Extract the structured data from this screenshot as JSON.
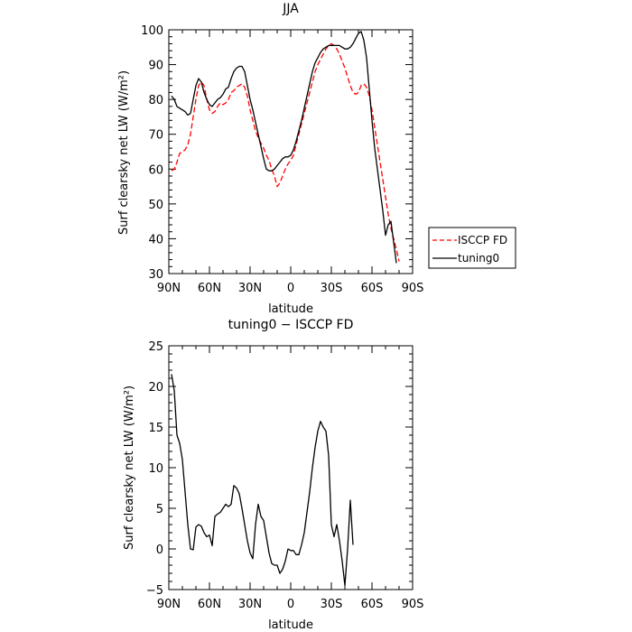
{
  "chart_data": [
    {
      "type": "line",
      "title": "JJA",
      "xlabel": "latitude",
      "ylabel": "Surf clearsky net LW (W/m²)",
      "xlim": [
        90,
        -90
      ],
      "ylim": [
        30,
        100
      ],
      "x_ticks": [
        90,
        60,
        30,
        0,
        -30,
        -60,
        -90
      ],
      "x_tick_labels": [
        "90N",
        "60N",
        "30N",
        "0",
        "30S",
        "60S",
        "90S"
      ],
      "y_ticks": [
        30,
        40,
        50,
        60,
        70,
        80,
        90,
        100
      ],
      "y_tick_labels": [
        "30",
        "40",
        "50",
        "60",
        "70",
        "80",
        "90",
        "100"
      ],
      "legend": {
        "position": "outside-right",
        "entries": [
          "ISCCP FD",
          "tuning0"
        ]
      },
      "series": [
        {
          "name": "ISCCP FD",
          "color": "#ff0000",
          "dash": "dashed",
          "points": [
            [
              88,
              59.5
            ],
            [
              86,
              60
            ],
            [
              84,
              62
            ],
            [
              82,
              64.5
            ],
            [
              80,
              65
            ],
            [
              78,
              65.5
            ],
            [
              76,
              67
            ],
            [
              74,
              70
            ],
            [
              72,
              75
            ],
            [
              70,
              80
            ],
            [
              68,
              84
            ],
            [
              66,
              85
            ],
            [
              64,
              84
            ],
            [
              62,
              80
            ],
            [
              60,
              77
            ],
            [
              58,
              76
            ],
            [
              56,
              76.5
            ],
            [
              54,
              78
            ],
            [
              52,
              79
            ],
            [
              50,
              78.5
            ],
            [
              48,
              79
            ],
            [
              46,
              80
            ],
            [
              44,
              82
            ],
            [
              42,
              82.5
            ],
            [
              40,
              83.5
            ],
            [
              38,
              84
            ],
            [
              36,
              84.5
            ],
            [
              34,
              83.5
            ],
            [
              32,
              81
            ],
            [
              30,
              77
            ],
            [
              28,
              74
            ],
            [
              26,
              71
            ],
            [
              24,
              69
            ],
            [
              22,
              67.5
            ],
            [
              20,
              66
            ],
            [
              18,
              64
            ],
            [
              16,
              62.5
            ],
            [
              14,
              60
            ],
            [
              12,
              58
            ],
            [
              10,
              55
            ],
            [
              8,
              56
            ],
            [
              6,
              58
            ],
            [
              4,
              60
            ],
            [
              2,
              61.5
            ],
            [
              0,
              62.5
            ],
            [
              -2,
              64
            ],
            [
              -4,
              67
            ],
            [
              -6,
              70
            ],
            [
              -8,
              73
            ],
            [
              -10,
              76
            ],
            [
              -12,
              79
            ],
            [
              -14,
              82
            ],
            [
              -16,
              85
            ],
            [
              -18,
              88
            ],
            [
              -20,
              90
            ],
            [
              -22,
              91.5
            ],
            [
              -24,
              93
            ],
            [
              -26,
              94.5
            ],
            [
              -28,
              95.5
            ],
            [
              -30,
              96
            ],
            [
              -32,
              95.5
            ],
            [
              -34,
              94.5
            ],
            [
              -36,
              93
            ],
            [
              -38,
              91
            ],
            [
              -40,
              89
            ],
            [
              -42,
              86.5
            ],
            [
              -44,
              84
            ],
            [
              -46,
              82
            ],
            [
              -48,
              81.5
            ],
            [
              -50,
              82
            ],
            [
              -52,
              84
            ],
            [
              -54,
              84.5
            ],
            [
              -56,
              83.5
            ],
            [
              -58,
              81
            ],
            [
              -60,
              77
            ],
            [
              -62,
              72
            ],
            [
              -64,
              67
            ],
            [
              -66,
              62
            ],
            [
              -68,
              57
            ],
            [
              -70,
              52
            ],
            [
              -72,
              47
            ],
            [
              -74,
              43
            ],
            [
              -76,
              40
            ],
            [
              -78,
              37
            ],
            [
              -80,
              33.5
            ]
          ]
        },
        {
          "name": "tuning0",
          "color": "#000000",
          "dash": "solid",
          "points": [
            [
              88,
              81
            ],
            [
              86,
              80
            ],
            [
              84,
              78
            ],
            [
              82,
              77.5
            ],
            [
              80,
              77
            ],
            [
              78,
              76.5
            ],
            [
              76,
              75.5
            ],
            [
              74,
              76
            ],
            [
              72,
              80
            ],
            [
              70,
              84
            ],
            [
              68,
              86
            ],
            [
              66,
              85
            ],
            [
              64,
              82
            ],
            [
              62,
              80
            ],
            [
              60,
              78.5
            ],
            [
              58,
              78
            ],
            [
              56,
              79
            ],
            [
              54,
              80
            ],
            [
              52,
              80.5
            ],
            [
              50,
              81.5
            ],
            [
              48,
              83
            ],
            [
              46,
              83.5
            ],
            [
              44,
              86
            ],
            [
              42,
              88
            ],
            [
              40,
              89
            ],
            [
              38,
              89.5
            ],
            [
              36,
              89.5
            ],
            [
              34,
              88
            ],
            [
              32,
              84
            ],
            [
              30,
              80
            ],
            [
              28,
              77
            ],
            [
              26,
              73.5
            ],
            [
              24,
              70
            ],
            [
              22,
              66.5
            ],
            [
              20,
              63
            ],
            [
              18,
              60
            ],
            [
              16,
              59.5
            ],
            [
              14,
              59.5
            ],
            [
              12,
              60
            ],
            [
              10,
              61
            ],
            [
              8,
              62
            ],
            [
              6,
              63
            ],
            [
              4,
              63.5
            ],
            [
              2,
              63.5
            ],
            [
              0,
              64
            ],
            [
              -2,
              65.5
            ],
            [
              -4,
              68
            ],
            [
              -6,
              71
            ],
            [
              -8,
              74
            ],
            [
              -10,
              77.5
            ],
            [
              -12,
              81
            ],
            [
              -14,
              84.5
            ],
            [
              -16,
              88
            ],
            [
              -18,
              90.5
            ],
            [
              -20,
              92
            ],
            [
              -22,
              93.5
            ],
            [
              -24,
              94.5
            ],
            [
              -26,
              95
            ],
            [
              -28,
              95.5
            ],
            [
              -30,
              95.5
            ],
            [
              -32,
              95.5
            ],
            [
              -34,
              95.5
            ],
            [
              -36,
              95.5
            ],
            [
              -38,
              95
            ],
            [
              -40,
              94.5
            ],
            [
              -42,
              94.5
            ],
            [
              -44,
              95
            ],
            [
              -46,
              96
            ],
            [
              -48,
              97.5
            ],
            [
              -50,
              99
            ],
            [
              -52,
              99.5
            ],
            [
              -54,
              97
            ],
            [
              -56,
              92
            ],
            [
              -58,
              83
            ],
            [
              -60,
              74
            ],
            [
              -62,
              66
            ],
            [
              -64,
              60
            ],
            [
              -66,
              54
            ],
            [
              -68,
              48
            ],
            [
              -70,
              41
            ],
            [
              -72,
              44
            ],
            [
              -74,
              45
            ],
            [
              -76,
              39
            ],
            [
              -78,
              33
            ]
          ]
        }
      ]
    },
    {
      "type": "line",
      "title": "tuning0 − ISCCP FD",
      "xlabel": "latitude",
      "ylabel": "Surf clearsky net LW (W/m²)",
      "xlim": [
        90,
        -90
      ],
      "ylim": [
        -5,
        25
      ],
      "x_ticks": [
        90,
        60,
        30,
        0,
        -30,
        -60,
        -90
      ],
      "x_tick_labels": [
        "90N",
        "60N",
        "30N",
        "0",
        "30S",
        "60S",
        "90S"
      ],
      "y_ticks": [
        -5,
        0,
        5,
        10,
        15,
        20,
        25
      ],
      "y_tick_labels": [
        "−5",
        "0",
        "5",
        "10",
        "15",
        "20",
        "25"
      ],
      "series": [
        {
          "color": "#000000",
          "dash": "solid",
          "points": [
            [
              88,
              21.5
            ],
            [
              86,
              19.5
            ],
            [
              84,
              14
            ],
            [
              82,
              13
            ],
            [
              80,
              11
            ],
            [
              78,
              7
            ],
            [
              76,
              3
            ],
            [
              74,
              0
            ],
            [
              72,
              -0.1
            ],
            [
              70,
              2.7
            ],
            [
              68,
              3
            ],
            [
              66,
              2.8
            ],
            [
              64,
              2
            ],
            [
              62,
              1.5
            ],
            [
              60,
              1.7
            ],
            [
              58,
              0.4
            ],
            [
              56,
              4
            ],
            [
              54,
              4.3
            ],
            [
              52,
              4.5
            ],
            [
              50,
              5
            ],
            [
              48,
              5.5
            ],
            [
              46,
              5.2
            ],
            [
              44,
              5.5
            ],
            [
              42,
              7.8
            ],
            [
              40,
              7.5
            ],
            [
              38,
              6.8
            ],
            [
              36,
              5
            ],
            [
              34,
              3
            ],
            [
              32,
              1
            ],
            [
              30,
              -0.5
            ],
            [
              28,
              -1.2
            ],
            [
              26,
              3
            ],
            [
              24,
              5.5
            ],
            [
              22,
              4
            ],
            [
              20,
              3.5
            ],
            [
              18,
              1.5
            ],
            [
              16,
              -0.5
            ],
            [
              14,
              -1.8
            ],
            [
              12,
              -2
            ],
            [
              10,
              -2
            ],
            [
              8,
              -3
            ],
            [
              6,
              -2.5
            ],
            [
              4,
              -1.5
            ],
            [
              2,
              0
            ],
            [
              0,
              -0.2
            ],
            [
              -2,
              -0.2
            ],
            [
              -4,
              -0.7
            ],
            [
              -6,
              -0.7
            ],
            [
              -8,
              0.5
            ],
            [
              -10,
              2
            ],
            [
              -12,
              4.5
            ],
            [
              -14,
              7
            ],
            [
              -16,
              10
            ],
            [
              -18,
              12.5
            ],
            [
              -20,
              14.5
            ],
            [
              -22,
              15.7
            ],
            [
              -24,
              15
            ],
            [
              -26,
              14.5
            ],
            [
              -28,
              11.5
            ],
            [
              -30,
              3
            ],
            [
              -32,
              1.5
            ],
            [
              -34,
              3
            ],
            [
              -36,
              1
            ],
            [
              -38,
              -1.5
            ],
            [
              -40,
              -4.5
            ],
            [
              -42,
              0
            ],
            [
              -44,
              6
            ],
            [
              -46,
              0.5
            ]
          ]
        }
      ]
    }
  ]
}
